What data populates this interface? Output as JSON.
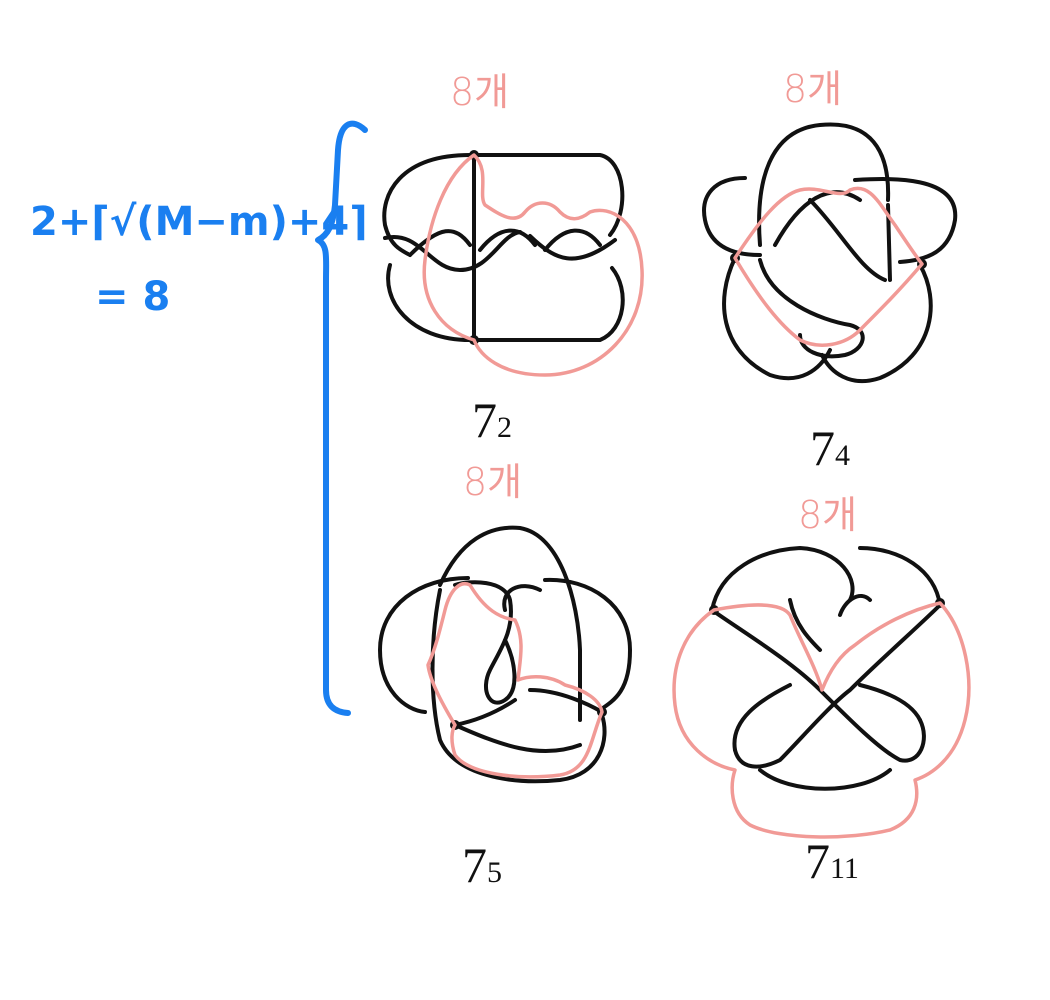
{
  "formula": {
    "line1": "2+⌈√(M−m)+4⌉",
    "line2": "= 8"
  },
  "knots": [
    {
      "id": "7_2",
      "base": "7",
      "sub": "2",
      "count_label": "8개"
    },
    {
      "id": "7_4",
      "base": "7",
      "sub": "4",
      "count_label": "8개"
    },
    {
      "id": "7_5",
      "base": "7",
      "sub": "5",
      "count_label": "8개"
    },
    {
      "id": "7_11",
      "base": "7",
      "sub": "11",
      "count_label": "8개"
    }
  ],
  "colors": {
    "knot_stroke": "#111111",
    "annotation_red": "#f19a96",
    "formula_blue": "#1a7ff0"
  }
}
